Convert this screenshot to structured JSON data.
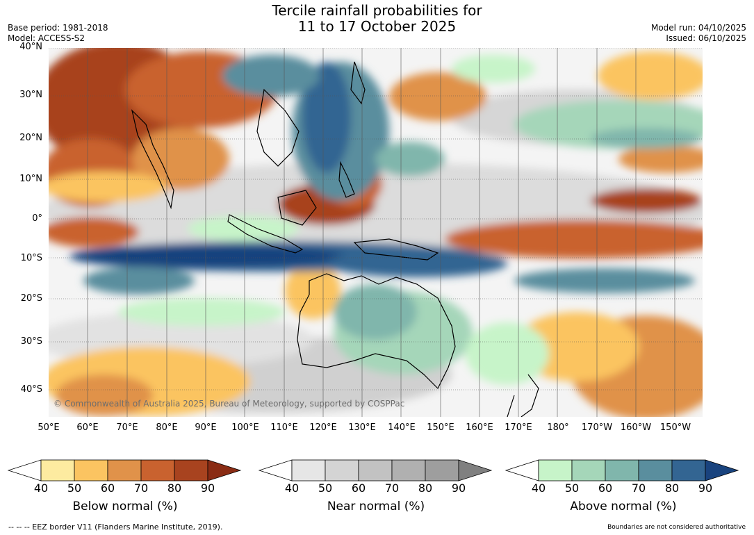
{
  "title_line1": "Tercile rainfall probabilities for",
  "title_line2": "11 to 17 October 2025",
  "meta_left": [
    "Base period: 1981-2018",
    "Model: ACCESS-S2"
  ],
  "meta_right": [
    "Model run: 04/10/2025",
    "Issued: 06/10/2025"
  ],
  "lat_labels": [
    "40°N",
    "30°N",
    "20°N",
    "10°N",
    "0°",
    "10°S",
    "20°S",
    "30°S",
    "40°S"
  ],
  "lon_labels": [
    "50°E",
    "60°E",
    "70°E",
    "80°E",
    "90°E",
    "100°E",
    "110°E",
    "120°E",
    "130°E",
    "140°E",
    "150°E",
    "160°E",
    "170°E",
    "180°",
    "170°W",
    "160°W",
    "150°W"
  ],
  "copyright": "© Commonwealth of Australia 2025, Bureau of Meteorology, supported by COSPPac",
  "colorbars": [
    {
      "title": "Below normal (%)",
      "ticks": [
        "40",
        "50",
        "60",
        "70",
        "80",
        "90"
      ],
      "colors": [
        "#ffffff",
        "#fdeba0",
        "#fbc461",
        "#e0924a",
        "#c9622f",
        "#a8431f",
        "#8a2c14"
      ]
    },
    {
      "title": "Near normal (%)",
      "ticks": [
        "40",
        "50",
        "60",
        "70",
        "80",
        "90"
      ],
      "colors": [
        "#ffffff",
        "#e6e6e6",
        "#d4d4d4",
        "#c2c2c2",
        "#b0b0b0",
        "#9e9e9e",
        "#808080"
      ]
    },
    {
      "title": "Above normal (%)",
      "ticks": [
        "40",
        "50",
        "60",
        "70",
        "80",
        "90"
      ],
      "colors": [
        "#ffffff",
        "#c7f4c9",
        "#a5d6b9",
        "#80b6ac",
        "#5a8e9e",
        "#336592",
        "#19437e"
      ]
    }
  ],
  "footer_left": "-- -- -- EEZ border V11 (Flanders Marine Institute, 2019).",
  "footer_right": "Boundaries are not considered authoritative"
}
